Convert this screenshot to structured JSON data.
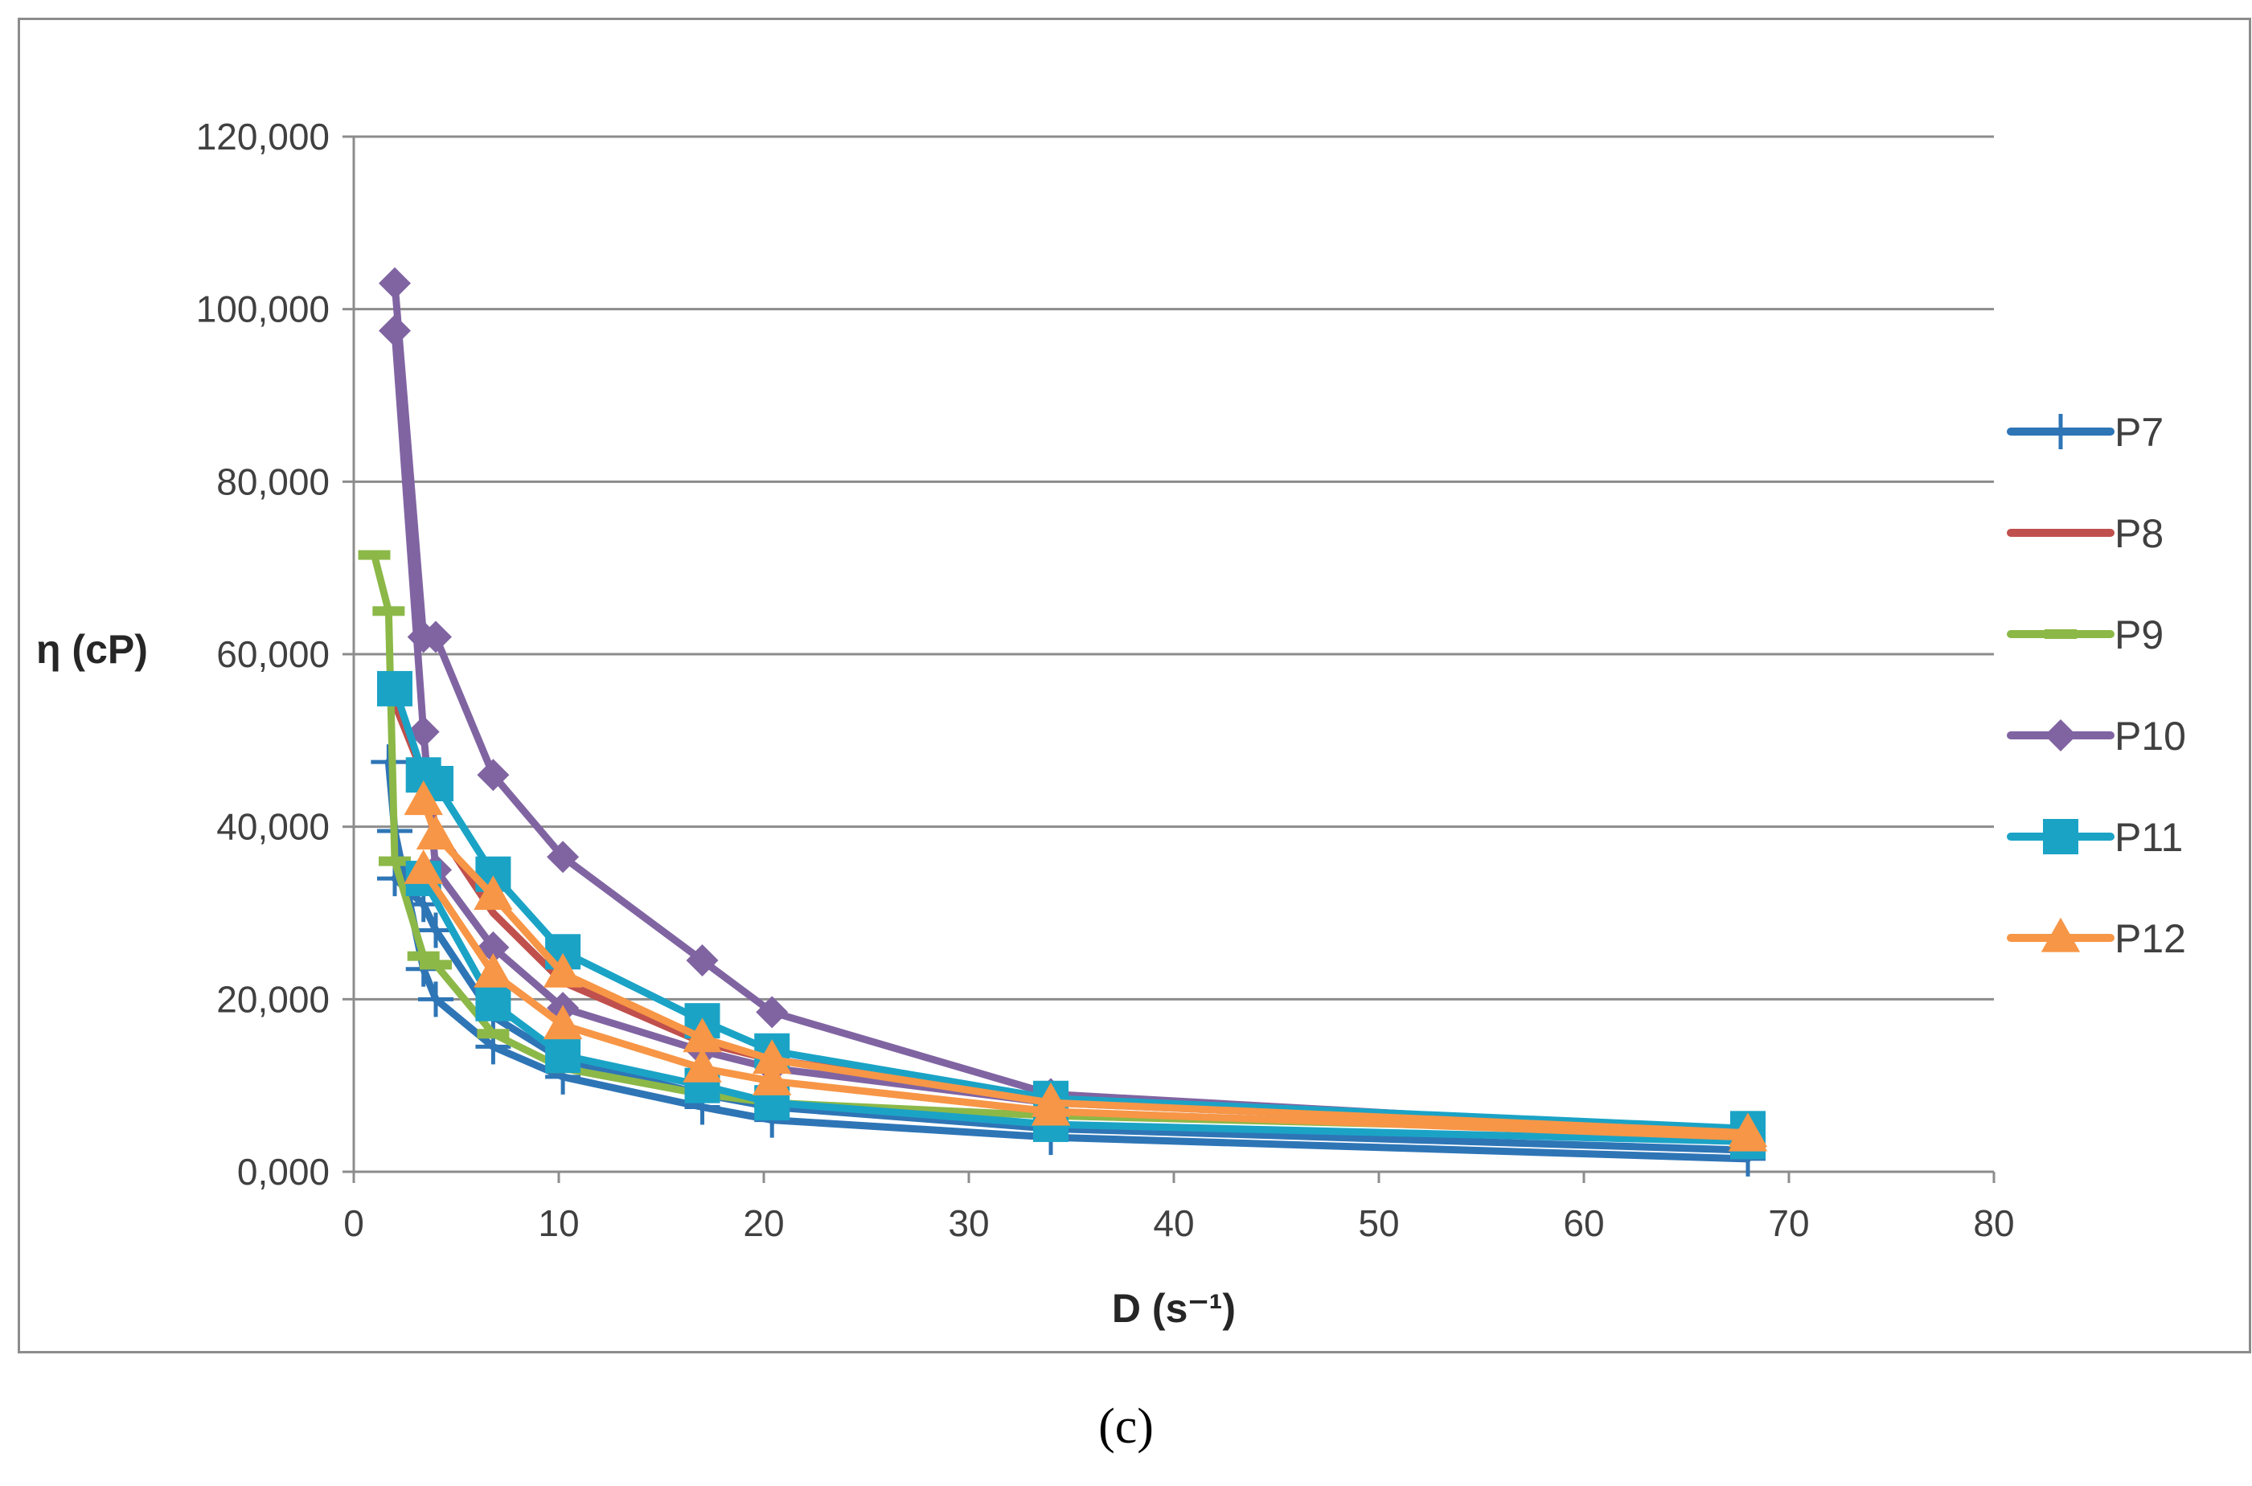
{
  "caption": "(c)",
  "chart_data": {
    "type": "line",
    "title": "",
    "xlabel": "D (s⁻¹)",
    "ylabel": "η (cP)",
    "xlim": [
      0,
      80
    ],
    "ylim": [
      0,
      120000
    ],
    "xticks": [
      0,
      10,
      20,
      30,
      40,
      50,
      60,
      70,
      80
    ],
    "xtick_labels": [
      "0",
      "10",
      "20",
      "30",
      "40",
      "50",
      "60",
      "70",
      "80"
    ],
    "yticks": [
      0,
      20000,
      40000,
      60000,
      80000,
      100000,
      120000
    ],
    "ytick_labels": [
      "0,000",
      "20,000",
      "40,000",
      "60,000",
      "80,000",
      "100,000",
      "120,000"
    ],
    "grid": "horizontal",
    "legend_position": "right",
    "series": [
      {
        "name": "P7",
        "color": "#2e75b6",
        "marker": "plus",
        "x": [
          1.7,
          2.0,
          3.4,
          4.0,
          6.8,
          10.2,
          17.0,
          20.4,
          34.0,
          68.0
        ],
        "y": [
          47500,
          39500,
          23500,
          20000,
          14500,
          11000,
          7500,
          6000,
          4000,
          1500
        ]
      },
      {
        "name": "P7",
        "color": "#2e75b6",
        "marker": "plus",
        "x": [
          2.0,
          3.4,
          4.0,
          6.8,
          10.2,
          17.0,
          20.4,
          34.0,
          68.0
        ],
        "y": [
          34000,
          31000,
          28000,
          18000,
          13000,
          9000,
          7500,
          5000,
          2500
        ]
      },
      {
        "name": "P8",
        "color": "#c0504d",
        "marker": "none",
        "x": [
          1.7,
          3.4,
          4.0,
          6.8,
          10.2,
          17.0,
          20.4,
          34.0,
          68.0
        ],
        "y": [
          56000,
          46000,
          40000,
          30000,
          22000,
          15000,
          13000,
          8500,
          4500
        ]
      },
      {
        "name": "P9",
        "color": "#8cb848",
        "marker": "dash",
        "x": [
          1.0,
          1.7,
          2.0,
          3.4,
          4.0,
          6.8,
          10.2,
          17.0,
          20.4,
          34.0,
          68.0
        ],
        "y": [
          71500,
          65000,
          36000,
          25000,
          24000,
          16000,
          12000,
          9000,
          8000,
          6500,
          4500
        ]
      },
      {
        "name": "P10",
        "color": "#8064a2",
        "marker": "diamond",
        "x": [
          2.0,
          3.4,
          4.0,
          6.8,
          10.2,
          17.0,
          20.4,
          34.0,
          68.0
        ],
        "y": [
          103000,
          62000,
          62000,
          46000,
          36500,
          24500,
          18500,
          9000,
          4500
        ]
      },
      {
        "name": "P10",
        "color": "#8064a2",
        "marker": "diamond",
        "x": [
          2.0,
          3.4,
          4.0,
          6.8,
          10.2,
          17.0,
          20.4,
          34.0,
          68.0
        ],
        "y": [
          97500,
          51000,
          35000,
          26000,
          19000,
          14000,
          12000,
          8000,
          4500
        ]
      },
      {
        "name": "P11",
        "color": "#1ba3c6",
        "marker": "square",
        "x": [
          2.0,
          3.4,
          4.0,
          6.8,
          10.2,
          17.0,
          20.4,
          34.0,
          68.0
        ],
        "y": [
          56000,
          46000,
          45000,
          34500,
          25500,
          17500,
          14000,
          8500,
          5000
        ]
      },
      {
        "name": "P11",
        "color": "#1ba3c6",
        "marker": "square",
        "x": [
          3.4,
          6.8,
          10.2,
          17.0,
          20.4,
          34.0,
          68.0
        ],
        "y": [
          34000,
          19500,
          13500,
          10000,
          8000,
          5500,
          3500
        ]
      },
      {
        "name": "P12",
        "color": "#f79646",
        "marker": "triangle",
        "x": [
          3.4,
          4.0,
          6.8,
          10.2,
          17.0,
          20.4,
          34.0,
          68.0
        ],
        "y": [
          43000,
          39000,
          32000,
          23000,
          15500,
          13000,
          8000,
          4500
        ]
      },
      {
        "name": "P12",
        "color": "#f79646",
        "marker": "triangle",
        "x": [
          3.4,
          6.8,
          10.2,
          17.0,
          20.4,
          34.0,
          68.0
        ],
        "y": [
          35000,
          23000,
          17000,
          12000,
          10500,
          7000,
          4000
        ]
      }
    ],
    "legend": [
      {
        "name": "P7",
        "color": "#2e75b6",
        "marker": "plus"
      },
      {
        "name": "P8",
        "color": "#c0504d",
        "marker": "none"
      },
      {
        "name": "P9",
        "color": "#8cb848",
        "marker": "dash"
      },
      {
        "name": "P10",
        "color": "#8064a2",
        "marker": "diamond"
      },
      {
        "name": "P11",
        "color": "#1ba3c6",
        "marker": "square"
      },
      {
        "name": "P12",
        "color": "#f79646",
        "marker": "triangle"
      }
    ]
  }
}
